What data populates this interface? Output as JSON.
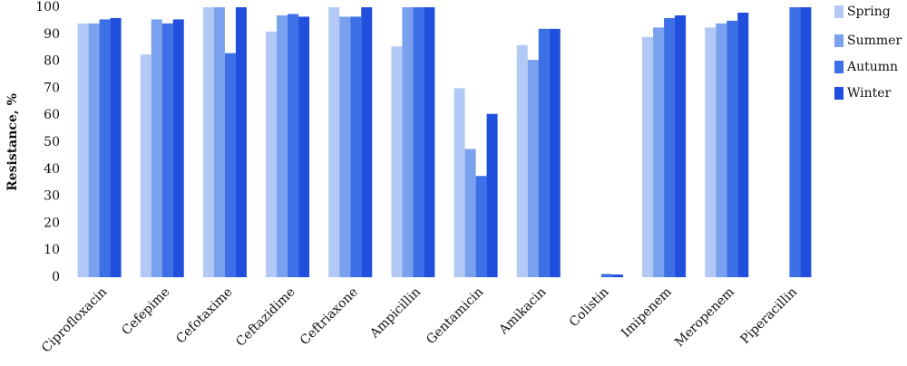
{
  "chart_data": {
    "type": "bar",
    "y_label": "Resistance, %",
    "categories": [
      "Ciprofloxacin",
      "Cefepime",
      "Cefotaxime",
      "Ceftazidime",
      "Ceftriaxone",
      "Ampicillin",
      "Gentamicin",
      "Amikacin",
      "Colistin",
      "Imipenem",
      "Meropenem",
      "Piperacillin"
    ],
    "series": [
      {
        "name": "Spring",
        "color": "#b3c9f5",
        "values": [
          94,
          82.5,
          100,
          91,
          100,
          85.5,
          70,
          86,
          0,
          89,
          92.5,
          0
        ]
      },
      {
        "name": "Summer",
        "color": "#7aa1ee",
        "values": [
          94,
          95.5,
          100,
          97,
          96.5,
          100,
          47.5,
          80.5,
          0,
          92.5,
          94,
          0
        ]
      },
      {
        "name": "Autumn",
        "color": "#3d6fe6",
        "values": [
          95.5,
          94,
          83,
          97.5,
          96.5,
          100,
          37.5,
          92,
          1.2,
          96,
          95,
          100
        ]
      },
      {
        "name": "Winter",
        "color": "#1f4fdc",
        "values": [
          96,
          95.5,
          100,
          96.5,
          100,
          100,
          60.5,
          92,
          1,
          97,
          98,
          100
        ]
      }
    ],
    "ylim": [
      0,
      100
    ],
    "yticks": [
      0,
      10,
      20,
      30,
      40,
      50,
      60,
      70,
      80,
      90,
      100
    ],
    "legend": "right"
  }
}
